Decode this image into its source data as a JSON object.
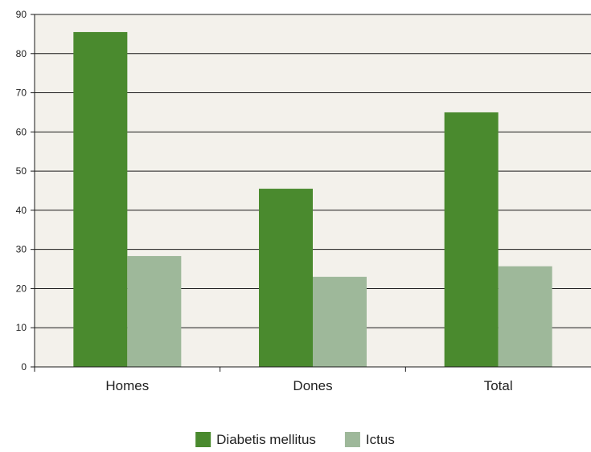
{
  "chart_data": {
    "type": "bar",
    "categories": [
      "Homes",
      "Dones",
      "Total"
    ],
    "series": [
      {
        "name": "Diabetis mellitus",
        "values": [
          85.5,
          45.5,
          65
        ],
        "color": "#4a8a2e"
      },
      {
        "name": "Ictus",
        "values": [
          28.3,
          23,
          25.7
        ],
        "color": "#9eb89a"
      }
    ],
    "title": "",
    "xlabel": "",
    "ylabel": "",
    "ylim": [
      0,
      90
    ],
    "yticks": [
      "0",
      "10",
      "20",
      "30",
      "40",
      "50",
      "60",
      "70",
      "80",
      "90"
    ],
    "grid": true,
    "legend_position": "bottom-center",
    "plot_background": "#f3f1eb"
  }
}
